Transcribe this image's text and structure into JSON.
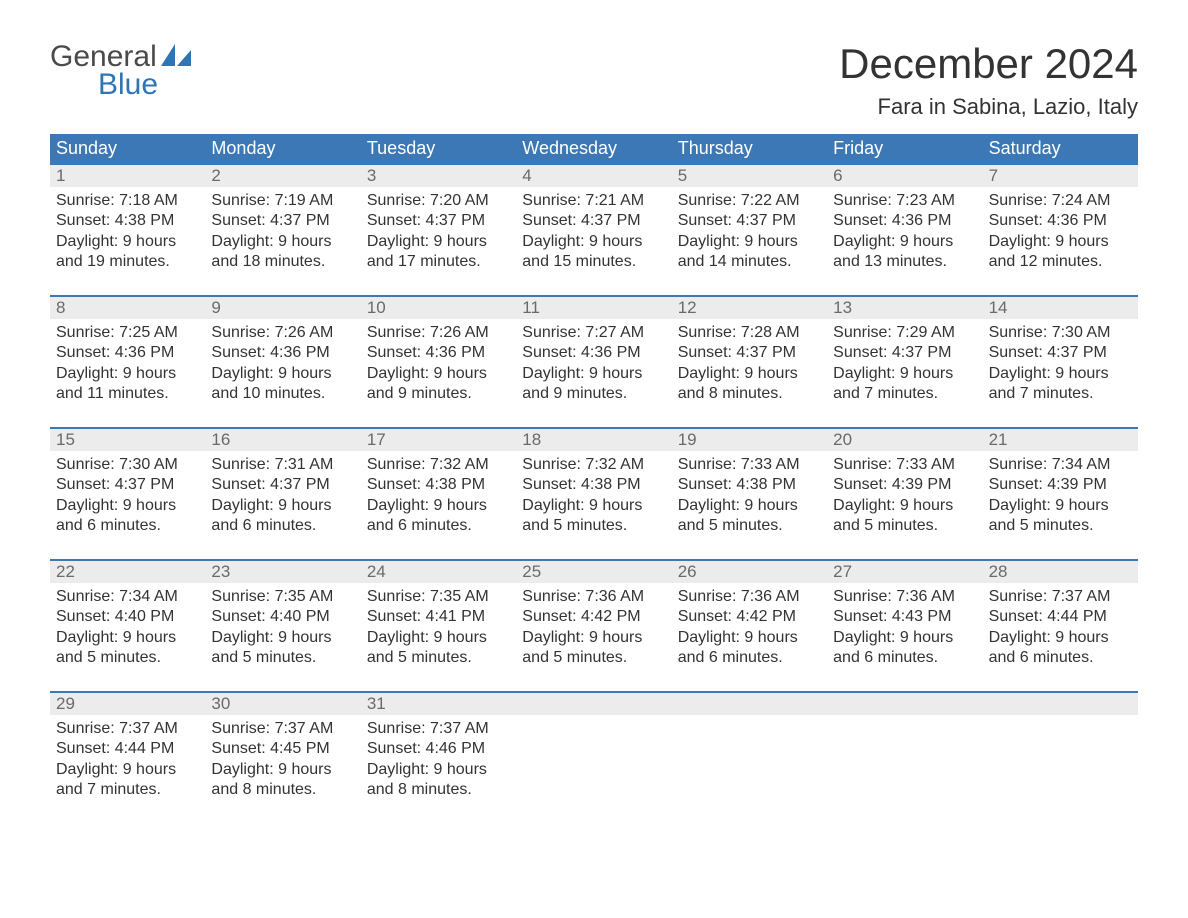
{
  "brand": {
    "general": "General",
    "blue": "Blue"
  },
  "title": "December 2024",
  "location": "Fara in Sabina, Lazio, Italy",
  "colors": {
    "header_bg": "#3b78b5",
    "header_text": "#ffffff",
    "daynum_bg": "#ececec",
    "daynum_text": "#6a6a6a",
    "body_text": "#333333",
    "logo_gray": "#4a4a4a",
    "logo_blue": "#2f75b5",
    "row_border": "#3b78b5",
    "background": "#ffffff"
  },
  "weekdays": [
    "Sunday",
    "Monday",
    "Tuesday",
    "Wednesday",
    "Thursday",
    "Friday",
    "Saturday"
  ],
  "weeks": [
    [
      {
        "n": "1",
        "sr": "Sunrise: 7:18 AM",
        "ss": "Sunset: 4:38 PM",
        "d1": "Daylight: 9 hours",
        "d2": "and 19 minutes."
      },
      {
        "n": "2",
        "sr": "Sunrise: 7:19 AM",
        "ss": "Sunset: 4:37 PM",
        "d1": "Daylight: 9 hours",
        "d2": "and 18 minutes."
      },
      {
        "n": "3",
        "sr": "Sunrise: 7:20 AM",
        "ss": "Sunset: 4:37 PM",
        "d1": "Daylight: 9 hours",
        "d2": "and 17 minutes."
      },
      {
        "n": "4",
        "sr": "Sunrise: 7:21 AM",
        "ss": "Sunset: 4:37 PM",
        "d1": "Daylight: 9 hours",
        "d2": "and 15 minutes."
      },
      {
        "n": "5",
        "sr": "Sunrise: 7:22 AM",
        "ss": "Sunset: 4:37 PM",
        "d1": "Daylight: 9 hours",
        "d2": "and 14 minutes."
      },
      {
        "n": "6",
        "sr": "Sunrise: 7:23 AM",
        "ss": "Sunset: 4:36 PM",
        "d1": "Daylight: 9 hours",
        "d2": "and 13 minutes."
      },
      {
        "n": "7",
        "sr": "Sunrise: 7:24 AM",
        "ss": "Sunset: 4:36 PM",
        "d1": "Daylight: 9 hours",
        "d2": "and 12 minutes."
      }
    ],
    [
      {
        "n": "8",
        "sr": "Sunrise: 7:25 AM",
        "ss": "Sunset: 4:36 PM",
        "d1": "Daylight: 9 hours",
        "d2": "and 11 minutes."
      },
      {
        "n": "9",
        "sr": "Sunrise: 7:26 AM",
        "ss": "Sunset: 4:36 PM",
        "d1": "Daylight: 9 hours",
        "d2": "and 10 minutes."
      },
      {
        "n": "10",
        "sr": "Sunrise: 7:26 AM",
        "ss": "Sunset: 4:36 PM",
        "d1": "Daylight: 9 hours",
        "d2": "and 9 minutes."
      },
      {
        "n": "11",
        "sr": "Sunrise: 7:27 AM",
        "ss": "Sunset: 4:36 PM",
        "d1": "Daylight: 9 hours",
        "d2": "and 9 minutes."
      },
      {
        "n": "12",
        "sr": "Sunrise: 7:28 AM",
        "ss": "Sunset: 4:37 PM",
        "d1": "Daylight: 9 hours",
        "d2": "and 8 minutes."
      },
      {
        "n": "13",
        "sr": "Sunrise: 7:29 AM",
        "ss": "Sunset: 4:37 PM",
        "d1": "Daylight: 9 hours",
        "d2": "and 7 minutes."
      },
      {
        "n": "14",
        "sr": "Sunrise: 7:30 AM",
        "ss": "Sunset: 4:37 PM",
        "d1": "Daylight: 9 hours",
        "d2": "and 7 minutes."
      }
    ],
    [
      {
        "n": "15",
        "sr": "Sunrise: 7:30 AM",
        "ss": "Sunset: 4:37 PM",
        "d1": "Daylight: 9 hours",
        "d2": "and 6 minutes."
      },
      {
        "n": "16",
        "sr": "Sunrise: 7:31 AM",
        "ss": "Sunset: 4:37 PM",
        "d1": "Daylight: 9 hours",
        "d2": "and 6 minutes."
      },
      {
        "n": "17",
        "sr": "Sunrise: 7:32 AM",
        "ss": "Sunset: 4:38 PM",
        "d1": "Daylight: 9 hours",
        "d2": "and 6 minutes."
      },
      {
        "n": "18",
        "sr": "Sunrise: 7:32 AM",
        "ss": "Sunset: 4:38 PM",
        "d1": "Daylight: 9 hours",
        "d2": "and 5 minutes."
      },
      {
        "n": "19",
        "sr": "Sunrise: 7:33 AM",
        "ss": "Sunset: 4:38 PM",
        "d1": "Daylight: 9 hours",
        "d2": "and 5 minutes."
      },
      {
        "n": "20",
        "sr": "Sunrise: 7:33 AM",
        "ss": "Sunset: 4:39 PM",
        "d1": "Daylight: 9 hours",
        "d2": "and 5 minutes."
      },
      {
        "n": "21",
        "sr": "Sunrise: 7:34 AM",
        "ss": "Sunset: 4:39 PM",
        "d1": "Daylight: 9 hours",
        "d2": "and 5 minutes."
      }
    ],
    [
      {
        "n": "22",
        "sr": "Sunrise: 7:34 AM",
        "ss": "Sunset: 4:40 PM",
        "d1": "Daylight: 9 hours",
        "d2": "and 5 minutes."
      },
      {
        "n": "23",
        "sr": "Sunrise: 7:35 AM",
        "ss": "Sunset: 4:40 PM",
        "d1": "Daylight: 9 hours",
        "d2": "and 5 minutes."
      },
      {
        "n": "24",
        "sr": "Sunrise: 7:35 AM",
        "ss": "Sunset: 4:41 PM",
        "d1": "Daylight: 9 hours",
        "d2": "and 5 minutes."
      },
      {
        "n": "25",
        "sr": "Sunrise: 7:36 AM",
        "ss": "Sunset: 4:42 PM",
        "d1": "Daylight: 9 hours",
        "d2": "and 5 minutes."
      },
      {
        "n": "26",
        "sr": "Sunrise: 7:36 AM",
        "ss": "Sunset: 4:42 PM",
        "d1": "Daylight: 9 hours",
        "d2": "and 6 minutes."
      },
      {
        "n": "27",
        "sr": "Sunrise: 7:36 AM",
        "ss": "Sunset: 4:43 PM",
        "d1": "Daylight: 9 hours",
        "d2": "and 6 minutes."
      },
      {
        "n": "28",
        "sr": "Sunrise: 7:37 AM",
        "ss": "Sunset: 4:44 PM",
        "d1": "Daylight: 9 hours",
        "d2": "and 6 minutes."
      }
    ],
    [
      {
        "n": "29",
        "sr": "Sunrise: 7:37 AM",
        "ss": "Sunset: 4:44 PM",
        "d1": "Daylight: 9 hours",
        "d2": "and 7 minutes."
      },
      {
        "n": "30",
        "sr": "Sunrise: 7:37 AM",
        "ss": "Sunset: 4:45 PM",
        "d1": "Daylight: 9 hours",
        "d2": "and 8 minutes."
      },
      {
        "n": "31",
        "sr": "Sunrise: 7:37 AM",
        "ss": "Sunset: 4:46 PM",
        "d1": "Daylight: 9 hours",
        "d2": "and 8 minutes."
      },
      null,
      null,
      null,
      null
    ]
  ]
}
